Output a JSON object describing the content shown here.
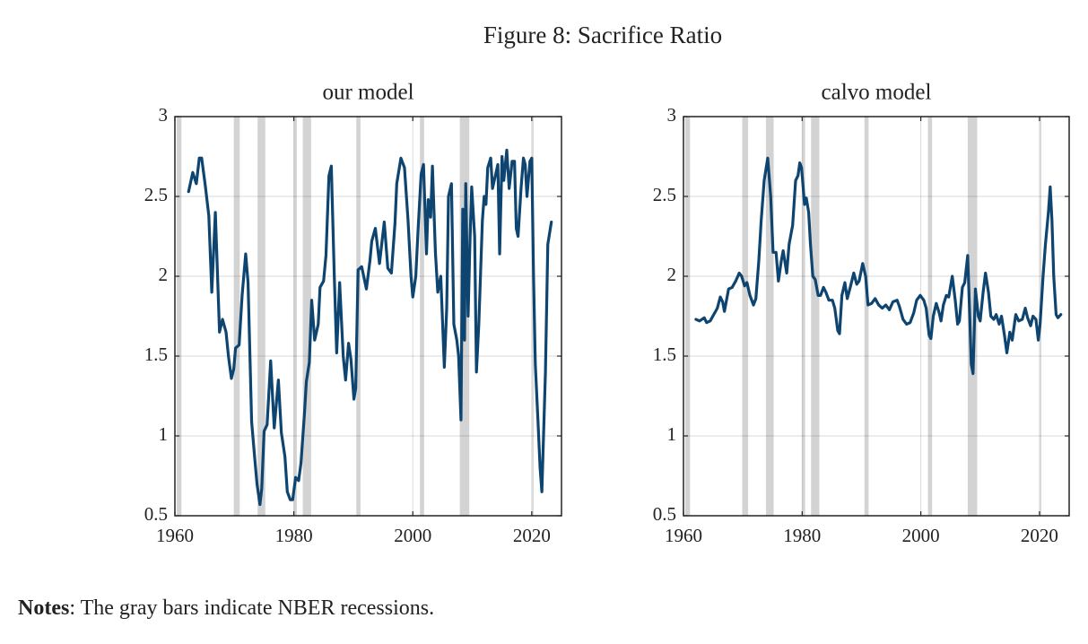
{
  "title": "Figure 8: Sacrifice Ratio",
  "notes": {
    "label": "Notes",
    "text": ": The gray bars indicate NBER recessions."
  },
  "chart_data": [
    {
      "type": "line",
      "title": "our model",
      "x": [
        1962.3,
        1963.0,
        1963.6,
        1964.1,
        1964.5,
        1965.1,
        1965.7,
        1966.2,
        1966.8,
        1967.5,
        1968.0,
        1968.6,
        1969.0,
        1969.5,
        1969.9,
        1970.2,
        1970.8,
        1971.3,
        1971.9,
        1972.3,
        1972.9,
        1973.4,
        1973.8,
        1974.3,
        1974.6,
        1975.0,
        1975.5,
        1976.1,
        1976.7,
        1977.4,
        1977.9,
        1978.5,
        1978.9,
        1979.4,
        1979.8,
        1980.3,
        1980.8,
        1981.2,
        1981.8,
        1982.1,
        1982.6,
        1983.0,
        1983.5,
        1984.1,
        1984.4,
        1985.0,
        1985.4,
        1985.9,
        1986.3,
        1986.8,
        1987.2,
        1987.7,
        1988.3,
        1988.7,
        1989.2,
        1989.6,
        1990.1,
        1990.4,
        1990.8,
        1991.4,
        1992.2,
        1992.8,
        1993.1,
        1993.7,
        1994.4,
        1995.2,
        1995.8,
        1996.4,
        1997.0,
        1997.3,
        1998.0,
        1998.6,
        1999.2,
        1999.7,
        2000.0,
        2000.5,
        2000.9,
        2001.4,
        2001.8,
        2002.3,
        2002.6,
        2003.0,
        2003.3,
        2003.8,
        2004.2,
        2004.7,
        2005.3,
        2005.7,
        2006.0,
        2006.5,
        2006.9,
        2007.4,
        2007.7,
        2008.1,
        2008.4,
        2008.7,
        2008.9,
        2009.3,
        2009.6,
        2009.9,
        2010.4,
        2010.7,
        2011.1,
        2011.7,
        2012.0,
        2012.3,
        2012.6,
        2013.1,
        2013.4,
        2014.0,
        2014.3,
        2014.6,
        2015.0,
        2015.3,
        2015.8,
        2016.2,
        2016.7,
        2017.1,
        2017.4,
        2017.7,
        2018.2,
        2018.6,
        2018.9,
        2019.2,
        2019.7,
        2020.0,
        2020.3,
        2020.6,
        2021.1,
        2021.4,
        2021.7,
        2022.3,
        2022.7,
        2023.3
      ],
      "series": [
        {
          "color": "#0e4470",
          "values": [
            2.53,
            2.65,
            2.58,
            2.74,
            2.74,
            2.57,
            2.38,
            1.9,
            2.4,
            1.65,
            1.73,
            1.65,
            1.5,
            1.36,
            1.42,
            1.55,
            1.57,
            1.88,
            2.14,
            1.96,
            1.09,
            0.87,
            0.7,
            0.57,
            0.67,
            1.03,
            1.07,
            1.47,
            1.05,
            1.35,
            1.02,
            0.87,
            0.65,
            0.6,
            0.6,
            0.74,
            0.72,
            0.83,
            1.15,
            1.34,
            1.46,
            1.85,
            1.6,
            1.7,
            1.93,
            1.97,
            2.13,
            2.63,
            2.69,
            2.0,
            1.52,
            1.96,
            1.5,
            1.35,
            1.58,
            1.48,
            1.23,
            1.3,
            2.04,
            2.06,
            1.92,
            2.1,
            2.22,
            2.3,
            2.08,
            2.34,
            2.05,
            2.02,
            2.33,
            2.58,
            2.74,
            2.68,
            2.35,
            2.0,
            1.87,
            2.0,
            2.3,
            2.64,
            2.7,
            2.14,
            2.48,
            2.37,
            2.69,
            2.15,
            1.9,
            2.0,
            1.43,
            1.8,
            2.5,
            2.58,
            1.7,
            1.6,
            1.5,
            1.1,
            2.42,
            1.6,
            2.58,
            1.75,
            2.2,
            2.56,
            2.25,
            1.4,
            1.7,
            2.35,
            2.5,
            2.45,
            2.68,
            2.74,
            2.55,
            2.65,
            2.7,
            2.14,
            2.75,
            2.6,
            2.79,
            2.55,
            2.72,
            2.72,
            2.3,
            2.25,
            2.55,
            2.74,
            2.7,
            2.5,
            2.72,
            2.74,
            2.0,
            1.45,
            1.05,
            0.8,
            0.65,
            1.4,
            2.2,
            2.34
          ]
        }
      ],
      "recessions": [
        [
          1960.3,
          1961.1
        ],
        [
          1969.9,
          1970.9
        ],
        [
          1973.9,
          1975.2
        ],
        [
          1980.0,
          1980.5
        ],
        [
          1981.5,
          1982.9
        ],
        [
          1990.5,
          1991.2
        ],
        [
          2001.2,
          2001.9
        ],
        [
          2007.9,
          2009.5
        ],
        [
          2020.1,
          2020.3
        ]
      ],
      "recession_color": "#d3d3d3",
      "xlim": [
        1960,
        2025
      ],
      "ylim": [
        0.5,
        3
      ],
      "xticks": [
        1960,
        1980,
        2000,
        2020
      ],
      "yticks": [
        0.5,
        1,
        1.5,
        2,
        2.5,
        3
      ],
      "grid": true
    },
    {
      "type": "line",
      "title": "calvo model",
      "x": [
        1962.1,
        1962.7,
        1963.5,
        1963.9,
        1964.5,
        1965.1,
        1965.7,
        1966.2,
        1966.6,
        1966.9,
        1967.6,
        1968.2,
        1968.8,
        1969.4,
        1969.8,
        1970.3,
        1970.7,
        1971.2,
        1971.8,
        1972.2,
        1972.7,
        1973.1,
        1973.6,
        1974.2,
        1974.7,
        1975.1,
        1975.6,
        1976.0,
        1976.5,
        1976.8,
        1977.4,
        1977.8,
        1978.4,
        1978.9,
        1979.3,
        1979.6,
        1979.9,
        1980.4,
        1980.7,
        1981.1,
        1981.4,
        1981.8,
        1982.2,
        1982.7,
        1983.1,
        1983.6,
        1984.0,
        1984.5,
        1985.1,
        1985.5,
        1986.0,
        1986.3,
        1986.7,
        1987.2,
        1987.6,
        1988.1,
        1988.7,
        1989.2,
        1989.6,
        1990.2,
        1990.7,
        1991.1,
        1991.7,
        1992.3,
        1992.9,
        1993.5,
        1994.1,
        1994.7,
        1995.3,
        1996.0,
        1996.4,
        1997.0,
        1997.6,
        1998.2,
        1998.8,
        1999.3,
        1999.9,
        2000.5,
        2000.9,
        2001.4,
        2001.7,
        2002.1,
        2002.6,
        2003.1,
        2003.4,
        2003.8,
        2004.3,
        2004.7,
        2005.3,
        2005.8,
        2006.2,
        2006.5,
        2007.0,
        2007.4,
        2007.9,
        2008.2,
        2008.5,
        2008.8,
        2009.2,
        2009.7,
        2010.0,
        2010.5,
        2010.9,
        2011.4,
        2011.8,
        2012.3,
        2012.7,
        2013.2,
        2013.6,
        2014.1,
        2014.5,
        2015.0,
        2015.4,
        2016.0,
        2016.5,
        2017.1,
        2017.6,
        2018.0,
        2018.5,
        2018.9,
        2019.4,
        2019.8,
        2020.1,
        2020.6,
        2021.0,
        2021.5,
        2021.8,
        2022.1,
        2022.4,
        2022.8,
        2023.1,
        2023.6
      ],
      "series": [
        {
          "color": "#0e4470",
          "values": [
            1.73,
            1.72,
            1.74,
            1.71,
            1.72,
            1.76,
            1.8,
            1.87,
            1.84,
            1.78,
            1.92,
            1.93,
            1.97,
            2.02,
            2.0,
            1.94,
            1.96,
            1.88,
            1.82,
            1.86,
            2.1,
            2.35,
            2.6,
            2.74,
            2.5,
            2.15,
            2.15,
            1.97,
            2.1,
            2.16,
            2.02,
            2.2,
            2.32,
            2.6,
            2.63,
            2.71,
            2.68,
            2.45,
            2.49,
            2.4,
            2.2,
            2.0,
            1.98,
            1.88,
            1.88,
            1.93,
            1.9,
            1.85,
            1.85,
            1.8,
            1.66,
            1.64,
            1.88,
            1.96,
            1.86,
            1.93,
            2.02,
            1.95,
            1.97,
            2.08,
            2.0,
            1.82,
            1.83,
            1.86,
            1.82,
            1.8,
            1.82,
            1.79,
            1.84,
            1.85,
            1.81,
            1.73,
            1.7,
            1.71,
            1.77,
            1.85,
            1.88,
            1.85,
            1.8,
            1.63,
            1.61,
            1.75,
            1.83,
            1.77,
            1.72,
            1.82,
            1.88,
            1.87,
            2.0,
            1.85,
            1.7,
            1.72,
            1.93,
            1.96,
            2.13,
            1.8,
            1.45,
            1.39,
            1.92,
            1.75,
            1.72,
            1.9,
            2.02,
            1.9,
            1.75,
            1.73,
            1.76,
            1.7,
            1.75,
            1.63,
            1.52,
            1.65,
            1.6,
            1.76,
            1.72,
            1.73,
            1.8,
            1.74,
            1.69,
            1.75,
            1.73,
            1.6,
            1.7,
            2.0,
            2.2,
            2.4,
            2.56,
            2.35,
            2.0,
            1.76,
            1.74,
            1.76
          ]
        }
      ],
      "recessions": [
        [
          1960.3,
          1961.1
        ],
        [
          1969.9,
          1970.9
        ],
        [
          1973.9,
          1975.2
        ],
        [
          1980.0,
          1980.5
        ],
        [
          1981.5,
          1982.9
        ],
        [
          1990.5,
          1991.2
        ],
        [
          2001.2,
          2001.9
        ],
        [
          2007.9,
          2009.5
        ],
        [
          2020.1,
          2020.3
        ]
      ],
      "recession_color": "#d3d3d3",
      "xlim": [
        1960,
        2025
      ],
      "ylim": [
        0.5,
        3
      ],
      "xticks": [
        1960,
        1980,
        2000,
        2020
      ],
      "yticks": [
        0.5,
        1,
        1.5,
        2,
        2.5,
        3
      ],
      "grid": true
    }
  ]
}
